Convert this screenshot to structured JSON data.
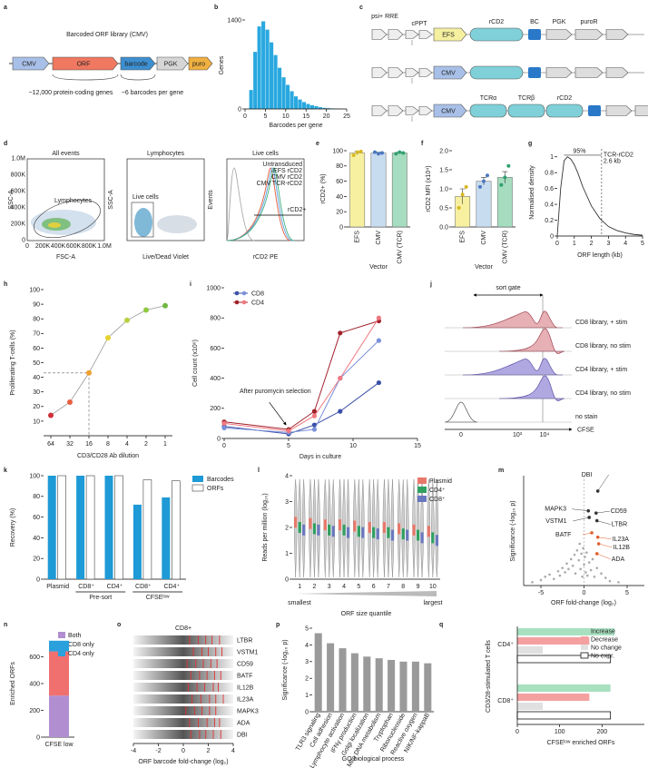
{
  "a": {
    "label": "a",
    "title": "Barcoded ORF library (CMV)",
    "elements": [
      "CMV",
      "ORF",
      "barcode",
      "PGK",
      "puro"
    ],
    "notes": [
      "~12,000 protein-coding genes",
      "~6 barcodes per gene"
    ]
  },
  "b": {
    "label": "b",
    "type": "histogram",
    "ylabel": "Genes",
    "xlabel": "Barcodes per gene",
    "bins": [
      1,
      2,
      3,
      4,
      5,
      6,
      7,
      8,
      9,
      10,
      11,
      12,
      13,
      14,
      15,
      16,
      17,
      18,
      19,
      20,
      21,
      22,
      23,
      24
    ],
    "counts": [
      300,
      900,
      1300,
      1380,
      1250,
      1050,
      850,
      650,
      500,
      380,
      280,
      200,
      150,
      110,
      80,
      60,
      45,
      30,
      20,
      15,
      10,
      8,
      5
    ],
    "xlim": [
      0,
      25
    ],
    "ylim": [
      0,
      1400
    ],
    "xticks": [
      0,
      5,
      10,
      15,
      20,
      25
    ],
    "yticks": [
      0,
      1400
    ],
    "color": "#29a8e0"
  },
  "c": {
    "label": "c",
    "features": [
      "psi+ RRE",
      "cPPT",
      "rCD2",
      "BC",
      "PGK",
      "puroR"
    ],
    "promoters": [
      "EFS",
      "CMV",
      "CMV"
    ],
    "tcr_features": [
      "TCRα",
      "TCRβ",
      "rCD2"
    ]
  },
  "d": {
    "label": "d",
    "plots": [
      {
        "title": "All events",
        "xlabel": "FSC-A",
        "ylabel": "SSC-A",
        "gate": "Lymphocytes",
        "xticks": [
          "0",
          "200K",
          "400K",
          "600K",
          "800K",
          "1.0M"
        ],
        "yticks": [
          "0",
          "200K",
          "400K",
          "600K",
          "800K",
          "1.0M"
        ]
      },
      {
        "title": "Lymphocytes",
        "xlabel": "Live/Dead Violet",
        "ylabel": "SSC-A",
        "gate": "Live cells"
      },
      {
        "title": "Live cells",
        "xlabel": "rCD2 PE",
        "ylabel": "Events",
        "gate": "rCD2+",
        "legend": [
          {
            "name": "Untransduced",
            "color": "#aaaaaa"
          },
          {
            "name": "EFS rCD2",
            "color": "#e05a3a"
          },
          {
            "name": "CMV rCD2",
            "color": "#5aa0e0"
          },
          {
            "name": "CMV TCR-rCD2",
            "color": "#40b080"
          }
        ]
      }
    ]
  },
  "e": {
    "label": "e",
    "type": "bar",
    "ylabel": "rCD2+ (%)",
    "xlabel": "Vector",
    "categories": [
      "EFS",
      "CMV",
      "CMV (TCR)"
    ],
    "values": [
      97,
      97,
      97
    ],
    "errors": [
      2,
      1,
      1
    ],
    "points": [
      [
        94,
        98,
        99
      ],
      [
        98,
        96,
        97
      ],
      [
        96,
        98,
        97
      ]
    ],
    "colors": [
      "#f7f0a0",
      "#c8dcf0",
      "#a6dcc0"
    ],
    "point_colors": [
      "#d8b820",
      "#4a78c0",
      "#30a070"
    ],
    "ylim": [
      0,
      100
    ],
    "yticks": [
      0,
      20,
      40,
      60,
      80,
      100
    ]
  },
  "f": {
    "label": "f",
    "type": "bar",
    "ylabel": "rCD2 MFI (x10⁴)",
    "xlabel": "Vector",
    "categories": [
      "EFS",
      "CMV",
      "CMV (TCR)"
    ],
    "values": [
      0.8,
      1.2,
      1.3
    ],
    "errors": [
      0.2,
      0.1,
      0.15
    ],
    "points": [
      [
        0.5,
        0.85,
        1.05
      ],
      [
        1.05,
        1.2,
        1.35
      ],
      [
        1.1,
        1.3,
        1.6
      ]
    ],
    "colors": [
      "#f7f0a0",
      "#c8dcf0",
      "#a6dcc0"
    ],
    "point_colors": [
      "#d8b820",
      "#4a78c0",
      "#30a070"
    ],
    "ylim": [
      0,
      2
    ],
    "yticks": [
      {
        "value": 0,
        "label": "0.0"
      },
      0.5,
      {
        "value": 1,
        "label": "1.0"
      },
      1.5,
      {
        "value": 2,
        "label": "2.0"
      }
    ]
  },
  "g": {
    "label": "g",
    "type": "line",
    "ylabel": "Normalised density",
    "xlabel": "ORF length (kb)",
    "x": [
      0,
      0.2,
      0.4,
      0.6,
      0.8,
      1,
      1.2,
      1.5,
      2,
      2.5,
      3,
      3.5,
      4,
      4.5,
      5
    ],
    "values": [
      0,
      0.6,
      0.95,
      1.0,
      0.97,
      0.9,
      0.8,
      0.62,
      0.38,
      0.22,
      0.12,
      0.07,
      0.04,
      0.02,
      0.01
    ],
    "xlim": [
      0,
      5
    ],
    "ylim": [
      0,
      1.1
    ],
    "xticks": [
      0,
      1,
      2,
      3,
      4,
      5
    ],
    "yticks": [
      0,
      0.2,
      0.4,
      0.6,
      0.8,
      1
    ],
    "marker": 2.6,
    "annotations": [
      "95%",
      "TCR-rCD2",
      "2.6 kb"
    ]
  },
  "h": {
    "label": "h",
    "type": "line",
    "ylabel": "Proliferating T-cells (%)",
    "xlabel": "CD3/CD28 Ab dilution",
    "categories": [
      "64",
      "32",
      "16",
      "8",
      "4",
      "2",
      "1"
    ],
    "values": [
      14,
      23,
      43,
      67,
      79,
      86,
      89
    ],
    "colors": [
      "#d0303a",
      "#e86040",
      "#f0a030",
      "#e8d030",
      "#b8d040",
      "#90c840",
      "#70b840"
    ],
    "ylim": [
      0,
      100
    ],
    "yticks": [
      10,
      20,
      30,
      40,
      50,
      60,
      70,
      80,
      90,
      100
    ]
  },
  "i": {
    "label": "i",
    "type": "line",
    "ylabel": "Cell count (x10⁶)",
    "xlabel": "Days in culture",
    "x": [
      0,
      5,
      7,
      9,
      12
    ],
    "series": [
      {
        "name": "CD8",
        "color": "#3a4fa8",
        "light": "#7a90d8",
        "replicates": [
          [
            80,
            30,
            90,
            180,
            370
          ],
          [
            70,
            40,
            60,
            400,
            650
          ]
        ]
      },
      {
        "name": "CD4",
        "color": "#a0202a",
        "light": "#f07880",
        "replicates": [
          [
            110,
            60,
            180,
            700,
            780
          ],
          [
            100,
            50,
            150,
            400,
            800
          ]
        ]
      }
    ],
    "xlim": [
      0,
      15
    ],
    "ylim": [
      0,
      1000
    ],
    "xticks": [
      0,
      5,
      10,
      15
    ],
    "yticks": [
      0,
      200,
      400,
      600,
      800,
      1000
    ],
    "annotation": "After puromycin selection"
  },
  "j": {
    "label": "j",
    "gate": "sort gate",
    "rows": [
      "CD8 library, + stim",
      "CD8 library, no stim",
      "CD4 library, + stim",
      "CD4 library, no stim",
      "no stain"
    ],
    "xlabel": "CFSE",
    "xticks": [
      "0",
      "10³",
      "10⁴"
    ]
  },
  "k": {
    "label": "k",
    "type": "bar",
    "ylabel": "Recovery (%)",
    "categories": [
      "Plasmid",
      "CD8⁺",
      "CD4⁺",
      "CD8⁺",
      "CD4⁺"
    ],
    "groups": [
      "Pre-sort",
      "CFSEˡᵒʷ"
    ],
    "series": [
      {
        "name": "Barcodes",
        "color": "#1e9ad6",
        "values": [
          100,
          100,
          100,
          72,
          79
        ]
      },
      {
        "name": "ORFs",
        "color": "#ffffff",
        "values": [
          100,
          100,
          100,
          96,
          95
        ]
      }
    ],
    "ylim": [
      0,
      100
    ],
    "yticks": [
      0,
      20,
      40,
      60,
      80,
      100
    ]
  },
  "l": {
    "label": "l",
    "type": "violin",
    "ylabel": "Reads per million (log₁₀)",
    "xlabel": "ORF size quantile",
    "categories": [
      1,
      2,
      3,
      4,
      5,
      6,
      7,
      8,
      9,
      10
    ],
    "ends": [
      "smallest",
      "largest"
    ],
    "series": [
      {
        "name": "Plasmid",
        "color": "#e8786a",
        "values": [
          2.2,
          2.15,
          2.1,
          2.1,
          2.05,
          2.0,
          2.0,
          1.95,
          1.9,
          1.85
        ]
      },
      {
        "name": "CD4⁺",
        "color": "#30a060",
        "values": [
          2.0,
          1.95,
          1.9,
          1.9,
          1.85,
          1.8,
          1.8,
          1.75,
          1.7,
          1.6
        ]
      },
      {
        "name": "CD8⁺",
        "color": "#6a78c0",
        "values": [
          1.9,
          1.9,
          1.85,
          1.8,
          1.8,
          1.75,
          1.7,
          1.7,
          1.6,
          1.5
        ]
      }
    ],
    "ylim": [
      0,
      4
    ],
    "yticks": [
      0,
      1,
      2,
      3,
      4
    ]
  },
  "m": {
    "label": "m",
    "type": "scatter",
    "ylabel": "Significance (-log₁₀ p)",
    "xlabel": "ORF fold-change (log₂)",
    "xlim": [
      -7,
      7
    ],
    "ylim": [
      0,
      10
    ],
    "xticks": [
      -5,
      0,
      5
    ],
    "genes": [
      {
        "name": "DBI",
        "x": 1.6,
        "y": 8.6
      },
      {
        "name": "MAPK3",
        "x": 0.5,
        "y": 6.8
      },
      {
        "name": "VSTM1",
        "x": 0.6,
        "y": 6.2
      },
      {
        "name": "CD59",
        "x": 1.4,
        "y": 6.6
      },
      {
        "name": "LTBR",
        "x": 1.5,
        "y": 5.9
      },
      {
        "name": "BATF",
        "x": 0.9,
        "y": 4.8
      },
      {
        "name": "IL23A",
        "x": 1.6,
        "y": 4.4
      },
      {
        "name": "IL12B",
        "x": 1.7,
        "y": 3.8
      },
      {
        "name": "ADA",
        "x": 1.5,
        "y": 2.9
      }
    ],
    "background": [
      [
        -6,
        0.3
      ],
      [
        -5,
        0.5
      ],
      [
        -4.5,
        0.8
      ],
      [
        -4,
        1.0
      ],
      [
        -3.5,
        0.6
      ],
      [
        -3,
        1.3
      ],
      [
        -2.8,
        0.9
      ],
      [
        -2.5,
        1.6
      ],
      [
        -2.2,
        1.2
      ],
      [
        -2,
        2.0
      ],
      [
        -1.8,
        1.5
      ],
      [
        -1.5,
        2.4
      ],
      [
        -1.3,
        1.8
      ],
      [
        -1.1,
        2.8
      ],
      [
        -1,
        1.1
      ],
      [
        -0.8,
        3.2
      ],
      [
        -0.6,
        2.3
      ],
      [
        -0.5,
        3.8
      ],
      [
        -0.4,
        1.5
      ],
      [
        -0.3,
        2.9
      ],
      [
        -0.2,
        0.8
      ],
      [
        -0.1,
        3.4
      ],
      [
        0,
        1.9
      ],
      [
        0.1,
        2.6
      ],
      [
        0.2,
        1.2
      ],
      [
        0.3,
        3.0
      ],
      [
        0.4,
        0.9
      ],
      [
        0.6,
        2.1
      ],
      [
        0.8,
        1.4
      ],
      [
        1,
        2.4
      ],
      [
        1.2,
        0.8
      ],
      [
        1.5,
        1.6
      ],
      [
        2,
        1.1
      ],
      [
        2.5,
        0.7
      ],
      [
        3,
        0.4
      ],
      [
        4,
        0.3
      ]
    ]
  },
  "n": {
    "label": "n",
    "type": "stacked-bar",
    "ylabel": "Enriched ORFs",
    "categories": [
      "CFSE low"
    ],
    "series": [
      {
        "name": "Both",
        "color": "#b08ed0",
        "values": [
          310
        ]
      },
      {
        "name": "CD8 only",
        "color": "#f07070",
        "values": [
          330
        ]
      },
      {
        "name": "CD4 only",
        "color": "#2aa0dc",
        "values": [
          80
        ]
      }
    ],
    "ylim": [
      0,
      800
    ],
    "yticks": [
      0,
      200,
      400,
      600
    ]
  },
  "o": {
    "label": "o",
    "title": "CD8+",
    "xlabel": "ORF barcode fold-change (log₂)",
    "xlim": [
      -4,
      4
    ],
    "xticks": [
      -4,
      -2,
      0,
      2,
      4
    ],
    "genes": [
      {
        "name": "LTBR",
        "barcodes": [
          0.5,
          1.2,
          1.8,
          2.3,
          2.9
        ]
      },
      {
        "name": "VSTM1",
        "barcodes": [
          0.8,
          1.5,
          2.0,
          2.6,
          3.1
        ]
      },
      {
        "name": "CD59",
        "barcodes": [
          0.3,
          1.0,
          1.6,
          2.2,
          2.7
        ]
      },
      {
        "name": "BATF",
        "barcodes": [
          0.6,
          1.3,
          1.9,
          2.5,
          3.0
        ]
      },
      {
        "name": "IL12B",
        "barcodes": [
          0.4,
          1.1,
          1.7,
          2.4,
          2.8
        ]
      },
      {
        "name": "IL23A",
        "barcodes": [
          0.7,
          1.4,
          2.1,
          2.6,
          3.2
        ]
      },
      {
        "name": "MAPK3",
        "barcodes": [
          0.2,
          0.9,
          1.5,
          2.1,
          2.6
        ]
      },
      {
        "name": "ADA",
        "barcodes": [
          0.5,
          1.2,
          1.9,
          2.5,
          2.9
        ]
      },
      {
        "name": "DBI",
        "barcodes": [
          0.6,
          1.3,
          1.8,
          2.4,
          3.0
        ]
      }
    ]
  },
  "p": {
    "label": "p",
    "type": "bar",
    "ylabel": "Significance (-log₁₀ p)",
    "xlabel": "GO biological process",
    "categories": [
      "TLR3 signaling",
      "Cell adhesion",
      "Lymphocyte activation",
      "IFNγ production",
      "Golgi localization",
      "Mito DNA metabolism",
      "Tryptophan",
      "Ribonucleoside",
      "Reactive oxygen",
      "NIK/NF-kappaB"
    ],
    "values": [
      4.7,
      4.1,
      3.8,
      3.5,
      3.3,
      3.2,
      3.1,
      3.0,
      3.0,
      2.9
    ],
    "color": "#9a9a9a",
    "ylim": [
      0,
      5
    ],
    "yticks": [
      0,
      1,
      2,
      3,
      4,
      5
    ]
  },
  "q": {
    "label": "q",
    "type": "hbar",
    "ylabel": "CD3/28-stimulated T cells",
    "xlabel": "CFSEˡᵒʷ enriched ORFs",
    "groups": [
      "CD4⁺",
      "CD8⁺"
    ],
    "series": [
      {
        "name": "Increase",
        "color": "#a8e0c0",
        "values": [
          230,
          220
        ]
      },
      {
        "name": "Decrease",
        "color": "#f5a0a0",
        "values": [
          170,
          170
        ]
      },
      {
        "name": "No change",
        "color": "#e0e0e0",
        "values": [
          60,
          60
        ]
      },
      {
        "name": "No expr.",
        "color": "#ffffff",
        "values": [
          220,
          220
        ]
      }
    ],
    "xlim": [
      0,
      300
    ],
    "xticks": [
      0,
      100,
      200
    ]
  }
}
